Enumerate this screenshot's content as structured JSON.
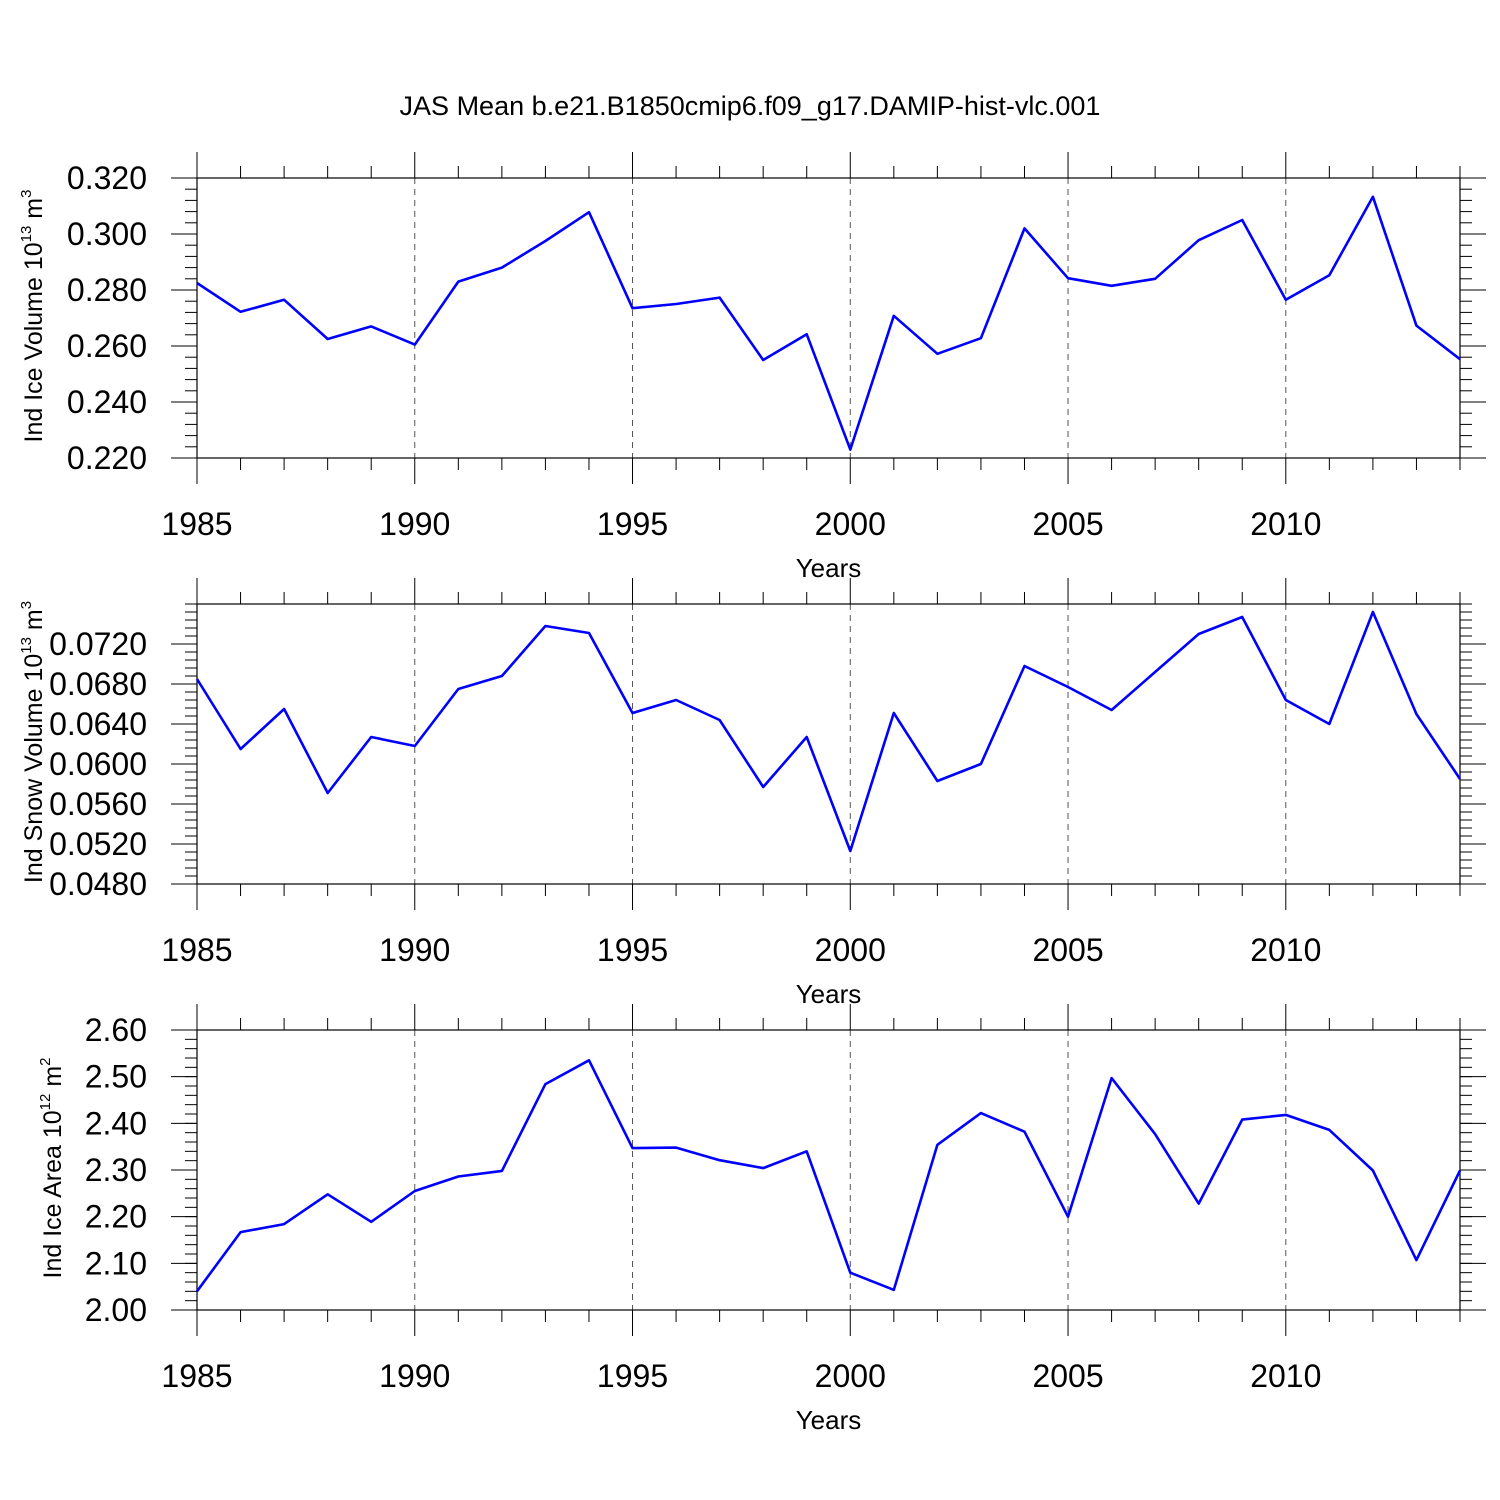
{
  "title": "JAS Mean b.e21.B1850cmip6.f09_g17.DAMIP-hist-vlc.001",
  "chart_data": [
    {
      "type": "line",
      "title": "JAS Mean b.e21.B1850cmip6.f09_g17.DAMIP-hist-vlc.001",
      "xlabel": "Years",
      "ylabel": {
        "main": "Ind Ice Volume 10",
        "exp": "13",
        "unit": " m",
        "unit_exp": "3"
      },
      "xlim": [
        1985,
        2014
      ],
      "ylim": [
        0.22,
        0.32
      ],
      "xticks": [
        1985,
        1990,
        1995,
        2000,
        2005,
        2010
      ],
      "xtick_labels": [
        "1985",
        "1990",
        "1995",
        "2000",
        "2005",
        "2010"
      ],
      "yticks": [
        0.22,
        0.24,
        0.26,
        0.28,
        0.3,
        0.32
      ],
      "ytick_labels": [
        "0.220",
        "0.240",
        "0.260",
        "0.280",
        "0.300",
        "0.320"
      ],
      "y_minor_step": 0.004,
      "grid": "vertical dashed at major x ticks",
      "line_color": "#0000ff",
      "x": [
        1985,
        1986,
        1987,
        1988,
        1989,
        1990,
        1991,
        1992,
        1993,
        1994,
        1995,
        1996,
        1997,
        1998,
        1999,
        2000,
        2001,
        2002,
        2003,
        2004,
        2005,
        2006,
        2007,
        2008,
        2009,
        2010,
        2011,
        2012,
        2013,
        2014
      ],
      "values": [
        0.2825,
        0.2722,
        0.2765,
        0.2625,
        0.267,
        0.2605,
        0.283,
        0.288,
        0.2975,
        0.3078,
        0.2735,
        0.275,
        0.2773,
        0.255,
        0.2642,
        0.223,
        0.2708,
        0.2572,
        0.2628,
        0.302,
        0.2842,
        0.2815,
        0.284,
        0.2978,
        0.305,
        0.2765,
        0.2853,
        0.3133,
        0.2673,
        0.2553
      ]
    },
    {
      "type": "line",
      "title": "",
      "xlabel": "Years",
      "ylabel": {
        "main": "Ind Snow Volume 10",
        "exp": "13",
        "unit": " m",
        "unit_exp": "3"
      },
      "xlim": [
        1985,
        2014
      ],
      "ylim": [
        0.048,
        0.076
      ],
      "xticks": [
        1985,
        1990,
        1995,
        2000,
        2005,
        2010
      ],
      "xtick_labels": [
        "1985",
        "1990",
        "1995",
        "2000",
        "2005",
        "2010"
      ],
      "yticks": [
        0.048,
        0.052,
        0.056,
        0.06,
        0.064,
        0.068,
        0.072
      ],
      "ytick_labels": [
        "0.0480",
        "0.0520",
        "0.0560",
        "0.0600",
        "0.0640",
        "0.0680",
        "0.0720"
      ],
      "y_minor_step": 0.0008,
      "grid": "vertical dashed at major x ticks",
      "line_color": "#0000ff",
      "x": [
        1985,
        1986,
        1987,
        1988,
        1989,
        1990,
        1991,
        1992,
        1993,
        1994,
        1995,
        1996,
        1997,
        1998,
        1999,
        2000,
        2001,
        2002,
        2003,
        2004,
        2005,
        2006,
        2007,
        2008,
        2009,
        2010,
        2011,
        2012,
        2013,
        2014
      ],
      "values": [
        0.0685,
        0.0615,
        0.0655,
        0.0571,
        0.0627,
        0.0618,
        0.0675,
        0.0688,
        0.0738,
        0.0731,
        0.0651,
        0.0664,
        0.0644,
        0.0577,
        0.0627,
        0.0513,
        0.0651,
        0.0583,
        0.06,
        0.0698,
        0.0677,
        0.0654,
        0.0692,
        0.073,
        0.0747,
        0.0664,
        0.064,
        0.0752,
        0.065,
        0.0585
      ]
    },
    {
      "type": "line",
      "title": "",
      "xlabel": "Years",
      "ylabel": {
        "main": "Ind Ice Area 10",
        "exp": "12",
        "unit": " m",
        "unit_exp": "2"
      },
      "xlim": [
        1985,
        2014
      ],
      "ylim": [
        2.0,
        2.6
      ],
      "xticks": [
        1985,
        1990,
        1995,
        2000,
        2005,
        2010
      ],
      "xtick_labels": [
        "1985",
        "1990",
        "1995",
        "2000",
        "2005",
        "2010"
      ],
      "yticks": [
        2.0,
        2.1,
        2.2,
        2.3,
        2.4,
        2.5,
        2.6
      ],
      "ytick_labels": [
        "2.00",
        "2.10",
        "2.20",
        "2.30",
        "2.40",
        "2.50",
        "2.60"
      ],
      "y_minor_step": 0.02,
      "grid": "vertical dashed at major x ticks",
      "line_color": "#0000ff",
      "x": [
        1985,
        1986,
        1987,
        1988,
        1989,
        1990,
        1991,
        1992,
        1993,
        1994,
        1995,
        1996,
        1997,
        1998,
        1999,
        2000,
        2001,
        2002,
        2003,
        2004,
        2005,
        2006,
        2007,
        2008,
        2009,
        2010,
        2011,
        2012,
        2013,
        2014
      ],
      "values": [
        2.04,
        2.167,
        2.184,
        2.248,
        2.189,
        2.255,
        2.286,
        2.298,
        2.484,
        2.535,
        2.347,
        2.348,
        2.321,
        2.304,
        2.34,
        2.08,
        2.043,
        2.354,
        2.422,
        2.382,
        2.2,
        2.497,
        2.377,
        2.228,
        2.408,
        2.418,
        2.386,
        2.299,
        2.107,
        2.299
      ]
    }
  ]
}
